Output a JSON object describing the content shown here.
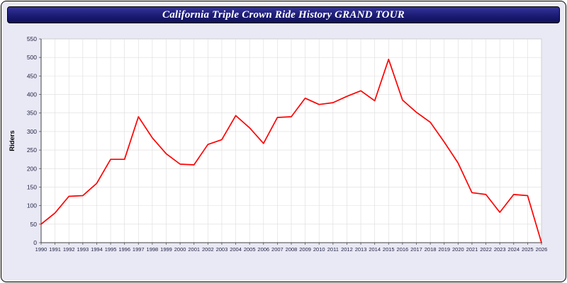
{
  "title": "California Triple Crown Ride History GRAND TOUR",
  "chart_data": {
    "type": "line",
    "title": "California Triple Crown Ride History GRAND TOUR",
    "xlabel": "",
    "ylabel": "Riders",
    "ylim": [
      0,
      550
    ],
    "ytick_step": 50,
    "grid": true,
    "legend_position": "none",
    "line_color": "#ff0000",
    "x": [
      1990,
      1991,
      1992,
      1993,
      1994,
      1995,
      1996,
      1997,
      1998,
      1999,
      2000,
      2001,
      2002,
      2003,
      2004,
      2005,
      2006,
      2007,
      2008,
      2009,
      2010,
      2011,
      2012,
      2013,
      2014,
      2015,
      2016,
      2017,
      2018,
      2019,
      2020,
      2021,
      2022,
      2023,
      2024,
      2025,
      2026
    ],
    "series": [
      {
        "name": "Riders",
        "color": "#ff0000",
        "values": [
          50,
          80,
          125,
          127,
          160,
          225,
          225,
          340,
          283,
          240,
          212,
          210,
          265,
          278,
          343,
          310,
          268,
          338,
          340,
          390,
          373,
          378,
          395,
          410,
          383,
          495,
          385,
          352,
          325,
          272,
          215,
          135,
          130,
          82,
          130,
          127,
          0
        ]
      }
    ]
  }
}
